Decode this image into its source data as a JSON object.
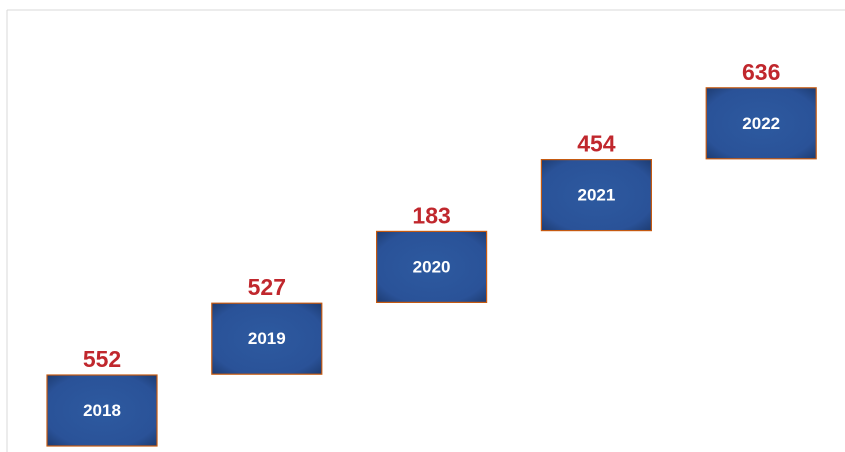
{
  "steps": [
    {
      "label": "2018",
      "value": 552
    },
    {
      "label": "2019",
      "value": 527
    },
    {
      "label": "2020",
      "value": 183
    },
    {
      "label": "2021",
      "value": 454
    },
    {
      "label": "2022",
      "value": 636
    }
  ]
}
